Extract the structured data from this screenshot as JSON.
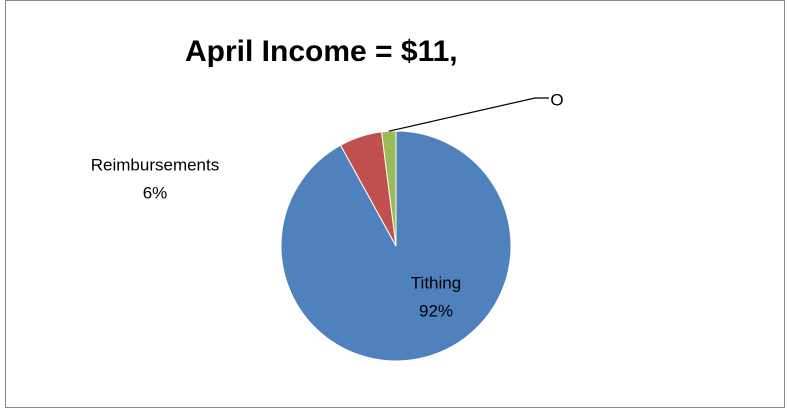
{
  "chart_data": {
    "type": "pie",
    "title": "April Income = $11,",
    "categories": [
      "Tithing",
      "Reimbursements",
      "O"
    ],
    "values": [
      92,
      6,
      2
    ],
    "value_labels": [
      "92%",
      "6%",
      null
    ],
    "colors": [
      "#4f81bd",
      "#c0504d",
      "#9bbb59"
    ]
  }
}
